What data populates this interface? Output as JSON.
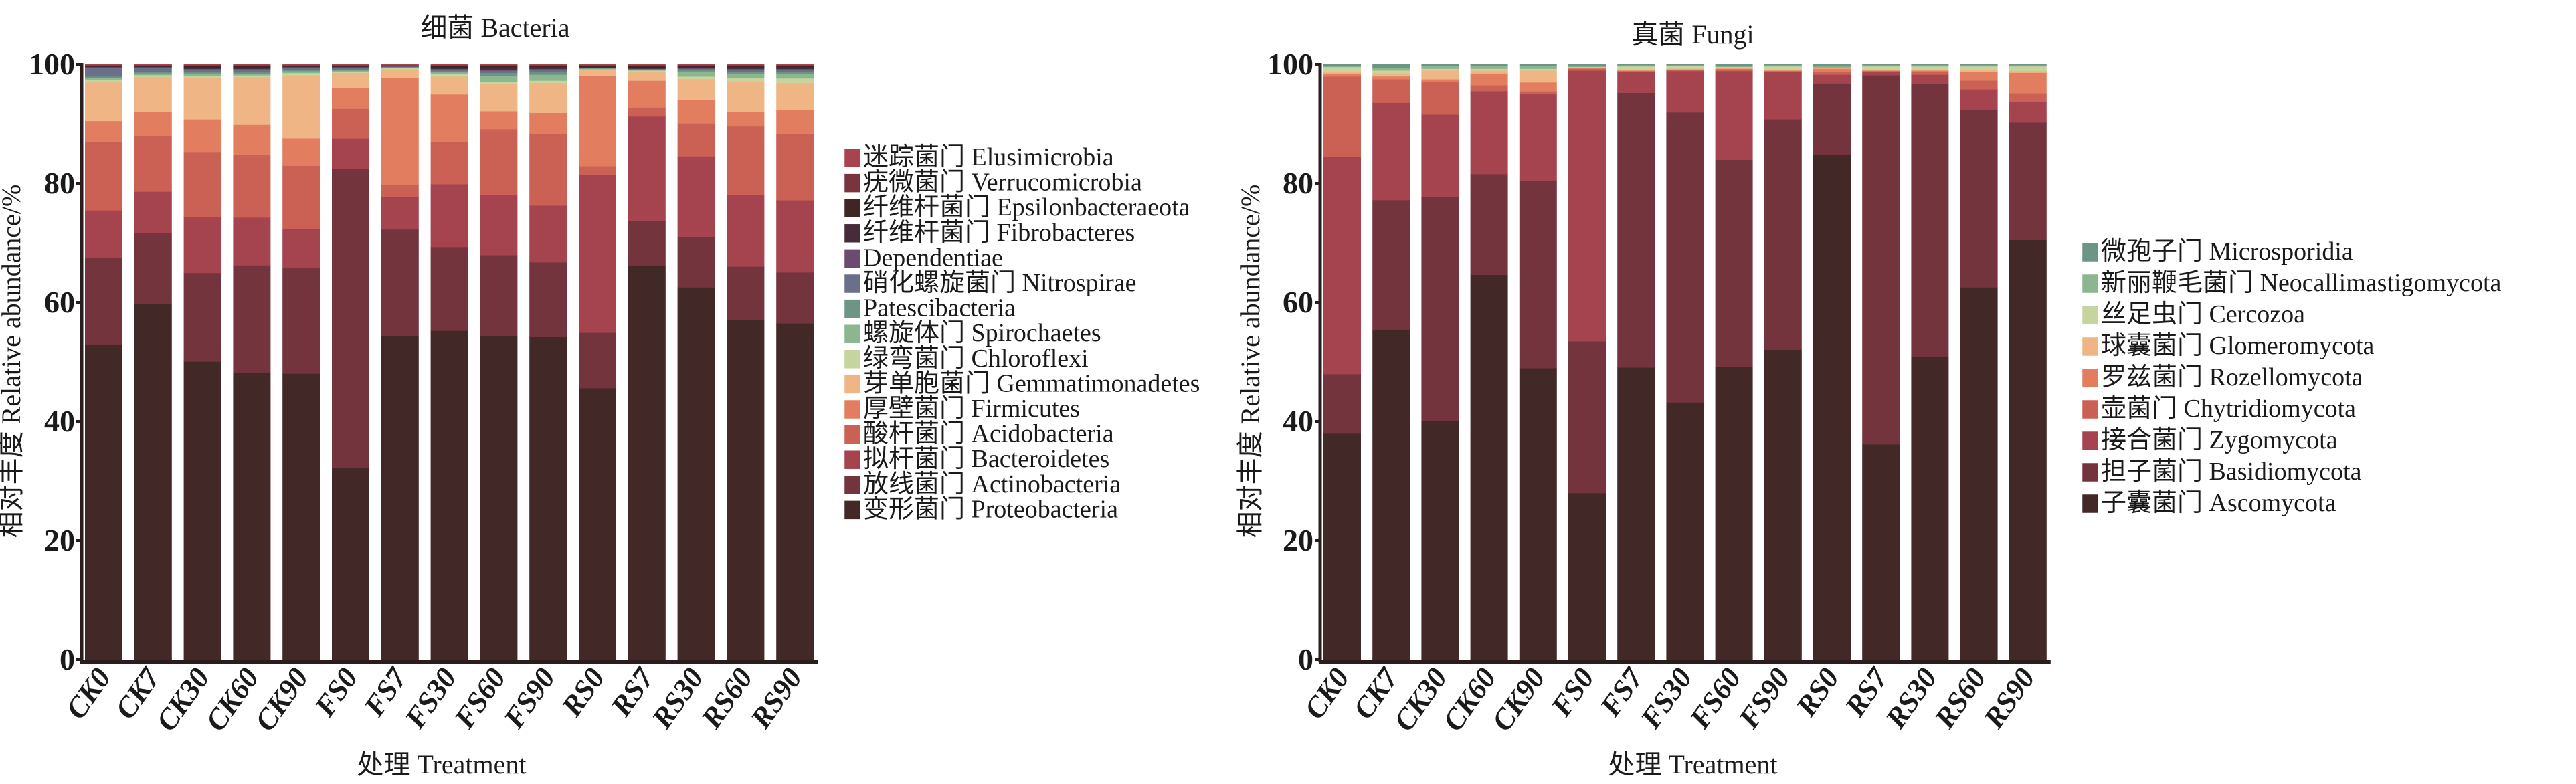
{
  "chart_data": [
    {
      "type": "bar",
      "stacked": true,
      "title": "细菌 Bacteria",
      "xlabel": "处理 Treatment",
      "ylabel": "相对丰度 Relative abundance/%",
      "ylim": [
        0,
        100
      ],
      "yticks": [
        0,
        20,
        40,
        60,
        80,
        100
      ],
      "grid": false,
      "legend_position": "right",
      "categories": [
        "CK0",
        "CK7",
        "CK30",
        "CK60",
        "CK90",
        "FS0",
        "FS7",
        "FS30",
        "FS60",
        "FS90",
        "RS0",
        "RS7",
        "RS30",
        "RS60",
        "RS90"
      ],
      "series": [
        {
          "name": "变形菌门 Proteobacteria",
          "color": "#432828",
          "values": [
            53.0,
            60.5,
            50.5,
            48.0,
            47.5,
            32.0,
            54.5,
            55.0,
            54.0,
            54.0,
            46.5,
            66.0,
            62.5,
            57.0,
            56.0
          ]
        },
        {
          "name": "放线菌门 Actinobacteria",
          "color": "#74343d",
          "values": [
            14.5,
            12.0,
            15.0,
            18.0,
            17.5,
            50.0,
            18.0,
            14.0,
            13.5,
            12.5,
            9.5,
            7.5,
            8.5,
            9.0,
            8.5
          ]
        },
        {
          "name": "拟杆菌门 Bacteroidetes",
          "color": "#a5444f",
          "values": [
            8.0,
            7.0,
            9.5,
            8.0,
            6.5,
            5.0,
            5.5,
            10.5,
            10.0,
            9.5,
            27.0,
            17.5,
            13.5,
            12.0,
            12.0
          ]
        },
        {
          "name": "酸杆菌门 Acidobacteria",
          "color": "#cb6154",
          "values": [
            11.5,
            9.5,
            11.0,
            10.5,
            10.5,
            5.0,
            2.0,
            7.0,
            11.0,
            12.0,
            1.5,
            1.5,
            5.5,
            11.5,
            11.0
          ]
        },
        {
          "name": "厚壁菌门 Firmicutes",
          "color": "#e27e5f",
          "values": [
            3.5,
            4.0,
            5.5,
            5.0,
            4.5,
            3.5,
            18.0,
            8.0,
            3.0,
            3.5,
            15.5,
            4.5,
            4.0,
            2.5,
            4.0
          ]
        },
        {
          "name": "芽单胞菌门 Gemmatimonadetes",
          "color": "#efb584",
          "values": [
            6.5,
            6.0,
            7.0,
            8.0,
            10.5,
            2.5,
            1.5,
            3.0,
            4.5,
            5.0,
            1.0,
            1.5,
            3.5,
            5.0,
            4.5
          ]
        },
        {
          "name": "绿弯菌门 Chloroflexi",
          "color": "#c6d49d",
          "values": [
            0.5,
            0.3,
            0.4,
            0.3,
            0.4,
            0.2,
            0.2,
            0.4,
            0.4,
            0.4,
            0.1,
            0.2,
            0.4,
            0.6,
            0.8
          ]
        },
        {
          "name": "螺旋体门 Spirochaetes",
          "color": "#8bb690",
          "values": [
            0.3,
            0.3,
            0.4,
            0.3,
            0.3,
            0.2,
            0.1,
            0.3,
            1.0,
            1.0,
            0.1,
            0.1,
            0.8,
            0.8,
            0.8
          ]
        },
        {
          "name": "Patescibacteria",
          "color": "#6d9585",
          "values": [
            0.2,
            0.2,
            0.2,
            0.2,
            0.2,
            0.2,
            0.1,
            0.2,
            0.5,
            0.4,
            0.1,
            0.1,
            0.3,
            0.3,
            0.3
          ]
        },
        {
          "name": "硝化螺旋菌门 Nitrospirae",
          "color": "#6a6f8a",
          "values": [
            1.5,
            0.8,
            0.5,
            0.5,
            0.4,
            0.3,
            0.1,
            0.3,
            0.4,
            0.4,
            0.1,
            0.1,
            0.2,
            0.3,
            0.3
          ]
        },
        {
          "name": "Dependentiae",
          "color": "#6b4b6e",
          "values": [
            0.1,
            0.1,
            0.1,
            0.1,
            0.1,
            0.1,
            0.0,
            0.1,
            0.2,
            0.2,
            0.0,
            0.0,
            0.1,
            0.2,
            0.2
          ]
        },
        {
          "name": "纤维杆菌门 Fibrobacteres",
          "color": "#452c38",
          "values": [
            0.1,
            0.1,
            0.2,
            0.2,
            0.1,
            0.1,
            0.0,
            0.2,
            0.4,
            0.3,
            0.1,
            0.2,
            0.2,
            0.3,
            0.3
          ]
        },
        {
          "name": "纤维杆菌门 Epsilonbacteraeota",
          "color": "#3f2523",
          "values": [
            0.1,
            0.1,
            0.3,
            0.3,
            0.1,
            0.1,
            0.1,
            0.3,
            0.2,
            0.2,
            0.2,
            0.3,
            0.2,
            0.2,
            0.2
          ]
        },
        {
          "name": "疣微菌门 Verrucomicrobia",
          "color": "#7a3440",
          "values": [
            0.1,
            0.1,
            0.1,
            0.1,
            0.1,
            0.1,
            0.1,
            0.1,
            0.1,
            0.1,
            0.1,
            0.1,
            0.1,
            0.1,
            0.1
          ]
        },
        {
          "name": "迷踪菌门 Elusimicrobia",
          "color": "#a9444f",
          "values": [
            0.1,
            0.1,
            0.1,
            0.1,
            0.1,
            0.1,
            0.1,
            0.1,
            0.1,
            0.1,
            0.1,
            0.1,
            0.1,
            0.1,
            0.1
          ]
        }
      ]
    },
    {
      "type": "bar",
      "stacked": true,
      "title": "真菌 Fungi",
      "xlabel": "处理 Treatment",
      "ylabel": "相对丰度 Relative abundance/%",
      "ylim": [
        0,
        100
      ],
      "yticks": [
        0,
        20,
        40,
        60,
        80,
        100
      ],
      "grid": false,
      "legend_position": "right",
      "categories": [
        "CK0",
        "CK7",
        "CK30",
        "CK60",
        "CK90",
        "FS0",
        "FS7",
        "FS30",
        "FS60",
        "FS90",
        "RS0",
        "RS7",
        "RS30",
        "RS60",
        "RS90"
      ],
      "series": [
        {
          "name": "子囊菌门 Ascomycota",
          "color": "#432828",
          "values": [
            38.0,
            56.0,
            40.5,
            65.0,
            49.0,
            28.0,
            49.5,
            43.5,
            49.5,
            52.5,
            85.5,
            36.5,
            51.0,
            63.0,
            71.5
          ]
        },
        {
          "name": "担子菌门 Basidiomycota",
          "color": "#74343d",
          "values": [
            10.0,
            22.0,
            38.0,
            17.0,
            31.5,
            25.5,
            46.5,
            49.0,
            35.0,
            39.0,
            12.0,
            62.5,
            46.0,
            30.0,
            20.0
          ]
        },
        {
          "name": "接合菌门 Zygomycota",
          "color": "#a5444f",
          "values": [
            36.5,
            16.5,
            14.0,
            14.0,
            14.5,
            45.5,
            3.5,
            7.0,
            15.0,
            8.0,
            1.5,
            0.5,
            1.5,
            3.5,
            3.5
          ]
        },
        {
          "name": "壶菌门 Chytridiomycota",
          "color": "#cb6154",
          "values": [
            13.5,
            4.0,
            5.5,
            1.0,
            0.5,
            0.3,
            0.2,
            0.2,
            0.3,
            0.2,
            0.5,
            0.2,
            0.5,
            1.5,
            1.5
          ]
        },
        {
          "name": "罗兹菌门 Rozellomycota",
          "color": "#e27e5f",
          "values": [
            0.5,
            0.5,
            0.5,
            2.0,
            1.5,
            0.1,
            0.1,
            0.1,
            0.1,
            0.1,
            0.5,
            0.1,
            0.2,
            1.5,
            3.5
          ]
        },
        {
          "name": "球囊菌门 Glomeromycota",
          "color": "#efb584",
          "values": [
            0.3,
            0.5,
            1.5,
            0.5,
            2.0,
            0.1,
            0.1,
            0.1,
            0.1,
            0.1,
            0.1,
            0.1,
            0.1,
            0.3,
            0.3
          ]
        },
        {
          "name": "丝足虫门 Cercozoa",
          "color": "#c6d49d",
          "values": [
            0.8,
            0.5,
            0.3,
            0.3,
            0.3,
            0.1,
            0.6,
            0.5,
            0.2,
            0.6,
            0.1,
            0.6,
            0.6,
            0.6,
            0.8
          ]
        },
        {
          "name": "新丽鞭毛菌门 Neocallimastigomycota",
          "color": "#8bb690",
          "values": [
            0.1,
            0.5,
            0.5,
            0.5,
            0.5,
            0.1,
            0.2,
            0.1,
            0.1,
            0.2,
            0.2,
            0.2,
            0.2,
            0.2,
            0.2
          ]
        },
        {
          "name": "微孢子门 Microsporidia",
          "color": "#6d9585",
          "values": [
            0.3,
            0.5,
            0.2,
            0.2,
            0.2,
            0.3,
            0.1,
            0.1,
            0.3,
            0.1,
            0.3,
            0.1,
            0.1,
            0.1,
            0.1
          ]
        }
      ]
    }
  ]
}
